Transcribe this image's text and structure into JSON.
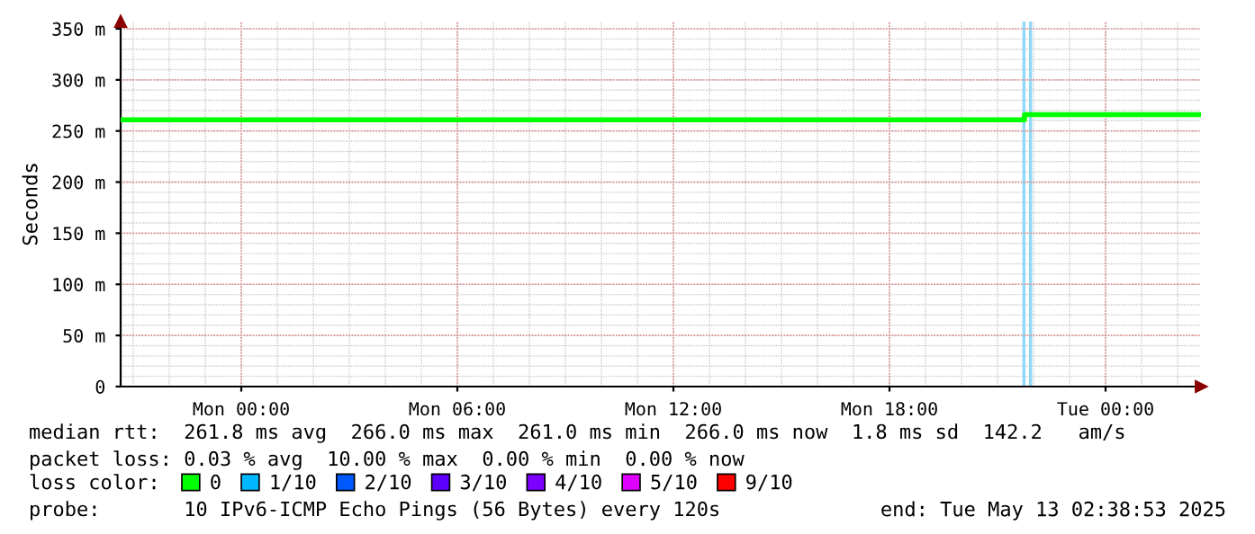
{
  "chart_data": {
    "type": "step",
    "ylabel": "Seconds",
    "xlim": [
      "2025-05-11T20:39",
      "2025-05-13T02:39"
    ],
    "xticks": [
      {
        "value": "2025-05-12T00:00",
        "label": "Mon 00:00"
      },
      {
        "value": "2025-05-12T06:00",
        "label": "Mon 06:00"
      },
      {
        "value": "2025-05-12T12:00",
        "label": "Mon 12:00"
      },
      {
        "value": "2025-05-12T18:00",
        "label": "Mon 18:00"
      },
      {
        "value": "2025-05-13T00:00",
        "label": "Tue 00:00"
      }
    ],
    "ylim": [
      0,
      357
    ],
    "yticks": [
      0,
      {
        "value": 50,
        "label": "50 m"
      },
      {
        "value": 100,
        "label": "100 m"
      },
      {
        "value": 150,
        "label": "150 m"
      },
      {
        "value": 200,
        "label": "200 m"
      },
      {
        "value": 250,
        "label": "250 m"
      },
      {
        "value": 300,
        "label": "300 m"
      },
      {
        "value": 350,
        "label": "350 m"
      }
    ],
    "grid": true,
    "legend": "bottom",
    "legend_title": "loss color:",
    "series": [
      {
        "name": "0",
        "color": "#00ff00",
        "x": [
          "2025-05-11T20:39",
          "2025-05-12T21:45",
          "2025-05-13T02:36"
        ],
        "values": [
          261,
          266,
          266
        ]
      },
      {
        "name": "1/10",
        "color": "#00b8ff"
      },
      {
        "name": "2/10",
        "color": "#0059ff"
      },
      {
        "name": "3/10",
        "color": "#5e00ff"
      },
      {
        "name": "4/10",
        "color": "#7e00ff"
      },
      {
        "name": "5/10",
        "color": "#dd00ff"
      },
      {
        "name": "9/10",
        "color": "#ff0000"
      }
    ],
    "ref_lines": [
      {
        "axis": "x",
        "value": "2025-05-12T21:44",
        "color": "#8fd8f8"
      },
      {
        "axis": "x",
        "value": "2025-05-12T21:55",
        "color": "#8fd8f8"
      }
    ],
    "annotations": [
      "median rtt:  261.8 ms avg  266.0 ms max  261.0 ms min  266.0 ms now  1.8 ms sd  142.2   am/s",
      "packet loss: 0.03 % avg  10.00 % max  0.00 % min  0.00 % now",
      "probe:       10 IPv6-ICMP Echo Pings (56 Bytes) every 120s",
      "end: Tue May 13 02:38:53 2025"
    ]
  }
}
